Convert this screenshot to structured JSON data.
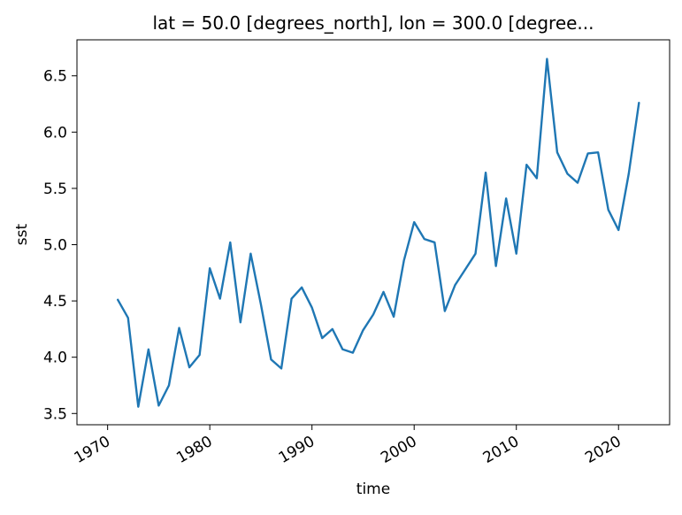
{
  "chart_data": {
    "type": "line",
    "title": "lat = 50.0 [degrees_north], lon = 300.0 [degree...",
    "xlabel": "time",
    "ylabel": "sst",
    "xlim": [
      1967,
      2025
    ],
    "ylim": [
      3.4,
      6.82
    ],
    "x_ticks": [
      1970,
      1980,
      1990,
      2000,
      2010,
      2020
    ],
    "y_ticks": [
      3.5,
      4.0,
      4.5,
      5.0,
      5.5,
      6.0,
      6.5
    ],
    "y_tick_labels": [
      "3.5",
      "4.0",
      "4.5",
      "5.0",
      "5.5",
      "6.0",
      "6.5"
    ],
    "grid": false,
    "series": [
      {
        "color": "#1f77b4",
        "x": [
          1971,
          1972,
          1973,
          1974,
          1975,
          1976,
          1977,
          1978,
          1979,
          1980,
          1981,
          1982,
          1983,
          1984,
          1985,
          1986,
          1987,
          1988,
          1989,
          1990,
          1991,
          1992,
          1993,
          1994,
          1995,
          1996,
          1997,
          1998,
          1999,
          2000,
          2001,
          2002,
          2003,
          2004,
          2005,
          2006,
          2007,
          2008,
          2009,
          2010,
          2011,
          2012,
          2013,
          2014,
          2015,
          2016,
          2017,
          2018,
          2019,
          2020,
          2021,
          2022
        ],
        "values": [
          4.51,
          4.35,
          3.56,
          4.07,
          3.57,
          3.75,
          4.26,
          3.91,
          4.02,
          4.79,
          4.52,
          5.02,
          4.31,
          4.92,
          4.47,
          3.98,
          3.9,
          4.52,
          4.62,
          4.44,
          4.17,
          4.25,
          4.07,
          4.04,
          4.24,
          4.38,
          4.58,
          4.36,
          4.86,
          5.2,
          5.05,
          5.02,
          4.41,
          4.64,
          4.78,
          4.92,
          5.64,
          4.81,
          5.41,
          4.92,
          5.71,
          5.59,
          6.65,
          5.82,
          5.63,
          5.55,
          5.81,
          5.82,
          5.31,
          5.13,
          5.63,
          6.26
        ]
      }
    ]
  }
}
